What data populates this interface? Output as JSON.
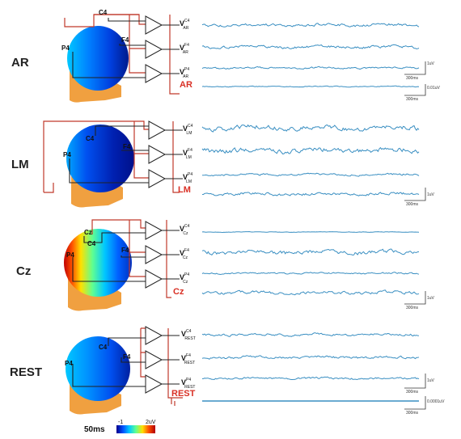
{
  "panels": [
    {
      "id": "ar",
      "label": "AR",
      "ref_label": "AR",
      "electrodes": [
        "C4",
        "F4",
        "P4"
      ],
      "channels": [
        {
          "sub": "AR",
          "sup": "C4"
        },
        {
          "sub": "AR",
          "sup": "F4"
        },
        {
          "sub": "AR",
          "sup": "P4"
        }
      ],
      "scales": [
        {
          "amp": "1uV",
          "time": "300ms"
        },
        {
          "amp": "0.01uV",
          "time": "300ms"
        }
      ]
    },
    {
      "id": "lm",
      "label": "LM",
      "ref_label": "LM",
      "electrodes": [
        "C4",
        "F4",
        "P4"
      ],
      "channels": [
        {
          "sub": "LM",
          "sup": "C4"
        },
        {
          "sub": "LM",
          "sup": "F4"
        },
        {
          "sub": "LM",
          "sup": "P4"
        }
      ],
      "scales": [
        {
          "amp": "1uV",
          "time": "300ms"
        }
      ]
    },
    {
      "id": "cz",
      "label": "Cz",
      "ref_label": "Cz",
      "electrodes": [
        "Cz",
        "C4",
        "F4",
        "P4"
      ],
      "channels": [
        {
          "sub": "Cz",
          "sup": "C4"
        },
        {
          "sub": "Cz",
          "sup": "F4"
        },
        {
          "sub": "Cz",
          "sup": "P4"
        }
      ],
      "scales": [
        {
          "amp": "1uV",
          "time": "300ms"
        }
      ]
    },
    {
      "id": "rest",
      "label": "REST",
      "ref_label": "REST",
      "electrodes": [
        "C4",
        "F4",
        "P4"
      ],
      "channels": [
        {
          "sub": "REST",
          "sup": "C4"
        },
        {
          "sub": "REST",
          "sup": "F4"
        },
        {
          "sub": "REST",
          "sup": "P4"
        }
      ],
      "scales": [
        {
          "amp": "1uV",
          "time": "300ms"
        },
        {
          "amp": "0.0001uV",
          "time": "300ms"
        }
      ]
    }
  ],
  "colorbar": {
    "title": "50ms",
    "min_label": "-1",
    "max_label": "2uV",
    "colors": [
      "#00008b",
      "#0050ff",
      "#00c8ff",
      "#60ff90",
      "#ffe000",
      "#ff5000",
      "#b00000"
    ]
  },
  "colors": {
    "trace": "#3a8fc2",
    "reference_wire": "#c0392b",
    "wire": "#222222",
    "neck": "#f0a040"
  }
}
